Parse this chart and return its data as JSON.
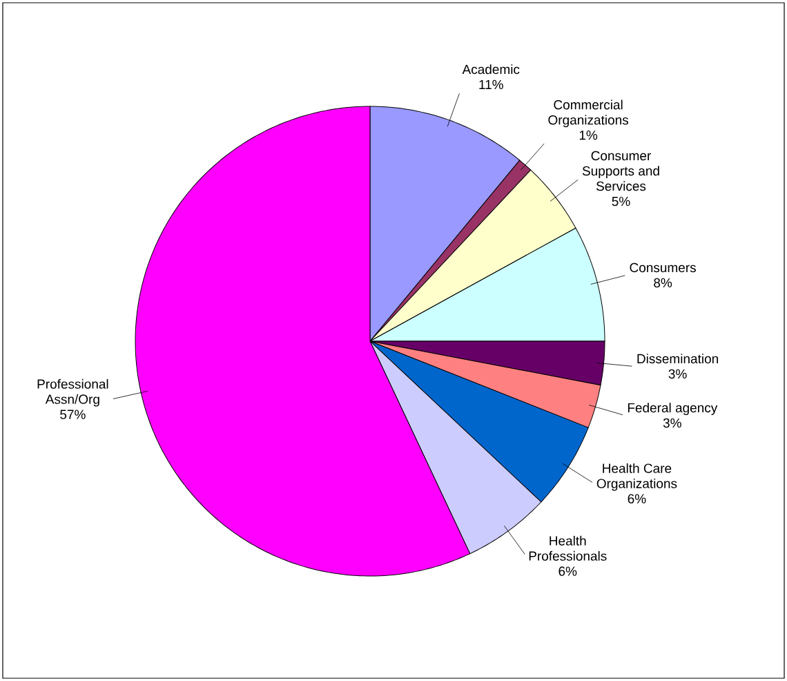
{
  "chart_data": {
    "type": "pie",
    "categories": [
      "Academic",
      "Commercial Organizations",
      "Consumer Supports and Services",
      "Consumers",
      "Dissemination",
      "Federal agency",
      "Health Care Organizations",
      "Health Professionals",
      "Professional Assn/Org"
    ],
    "values": [
      11,
      1,
      5,
      8,
      3,
      3,
      6,
      6,
      57
    ],
    "value_labels": [
      "11%",
      "1%",
      "5%",
      "8%",
      "3%",
      "3%",
      "6%",
      "6%",
      "57%"
    ],
    "colors": [
      "#9999ff",
      "#993366",
      "#ffffcc",
      "#ccffff",
      "#660066",
      "#ff8080",
      "#0066cc",
      "#ccccff",
      "#ff00ff"
    ]
  }
}
